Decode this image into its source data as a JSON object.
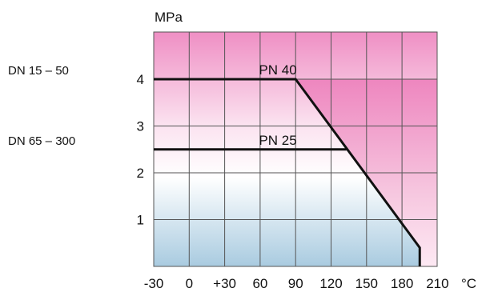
{
  "chart_data": {
    "type": "line",
    "ylabel": "MPa",
    "xlabel": "",
    "x_unit": "°C",
    "xlim": [
      -30,
      210
    ],
    "ylim": [
      0,
      5
    ],
    "x_ticks": [
      -30,
      0,
      30,
      60,
      90,
      120,
      150,
      180,
      210
    ],
    "x_tick_labels": [
      "-30",
      "0",
      "+30",
      "60",
      "90",
      "120",
      "150",
      "180",
      "210"
    ],
    "y_ticks": [
      1,
      2,
      3,
      4
    ],
    "y_tick_labels": [
      "1",
      "2",
      "3",
      "4"
    ],
    "grid": true,
    "background_gradient": {
      "top": "#ef8fc4",
      "bottom": "#a9cbe0"
    },
    "line_color": "#111111",
    "side_labels": [
      {
        "text": "DN 15 –  50",
        "y": 4
      },
      {
        "text": "DN 65 – 300",
        "y": 2.5
      }
    ],
    "series": [
      {
        "name": "PN 40",
        "label_at": [
          75,
          4
        ],
        "x": [
          -30,
          90,
          195,
          195
        ],
        "y": [
          4,
          4,
          0.4,
          0
        ]
      },
      {
        "name": "PN 25",
        "label_at": [
          75,
          2.5
        ],
        "x": [
          -30,
          133
        ],
        "y": [
          2.5,
          2.5
        ]
      }
    ]
  }
}
